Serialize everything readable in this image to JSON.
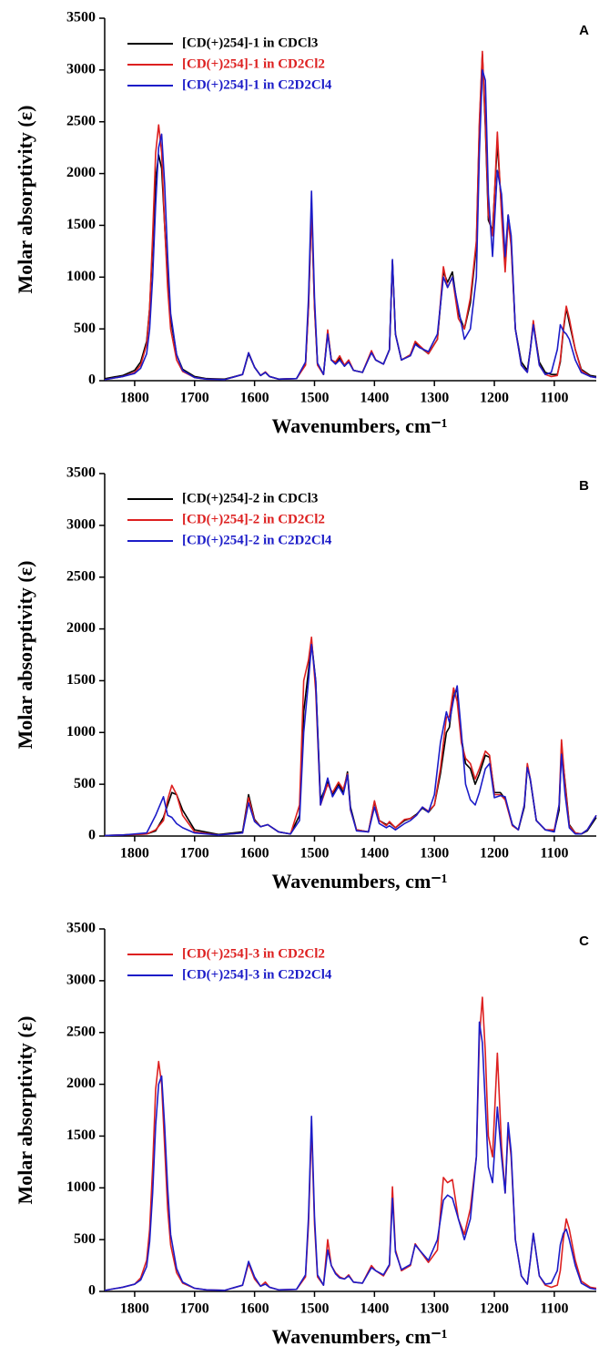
{
  "chart_data": [
    {
      "type": "line",
      "panel": "A",
      "ylabel": "Molar absorptivity (ε)",
      "xlabel": "Wavenumbers, cm⁻¹",
      "xlim": [
        1850,
        1030
      ],
      "xticks": [
        1800,
        1700,
        1600,
        1500,
        1400,
        1300,
        1200,
        1100
      ],
      "ylim": [
        0,
        3500
      ],
      "yticks": [
        0,
        500,
        1000,
        1500,
        2000,
        2500,
        3000,
        3500
      ],
      "x": [
        1850,
        1820,
        1800,
        1790,
        1780,
        1775,
        1770,
        1765,
        1760,
        1755,
        1750,
        1745,
        1740,
        1730,
        1720,
        1700,
        1680,
        1650,
        1620,
        1610,
        1600,
        1590,
        1582,
        1575,
        1560,
        1530,
        1515,
        1510,
        1505,
        1500,
        1495,
        1485,
        1478,
        1472,
        1465,
        1458,
        1450,
        1443,
        1435,
        1420,
        1405,
        1398,
        1385,
        1375,
        1370,
        1365,
        1355,
        1340,
        1332,
        1325,
        1310,
        1295,
        1285,
        1278,
        1270,
        1260,
        1250,
        1240,
        1230,
        1225,
        1220,
        1215,
        1210,
        1203,
        1195,
        1188,
        1182,
        1177,
        1172,
        1165,
        1155,
        1145,
        1140,
        1135,
        1125,
        1115,
        1105,
        1095,
        1090,
        1085,
        1080,
        1075,
        1065,
        1055,
        1040,
        1030
      ],
      "series": [
        {
          "name": "[CD(+)254]-1 in CDCl3",
          "color": "#000000",
          "values": [
            20,
            50,
            100,
            180,
            380,
            700,
            1300,
            1950,
            2180,
            2050,
            1500,
            1000,
            600,
            250,
            110,
            40,
            20,
            15,
            60,
            260,
            130,
            50,
            80,
            40,
            15,
            20,
            160,
            720,
            1680,
            720,
            160,
            60,
            470,
            200,
            170,
            220,
            140,
            190,
            100,
            80,
            280,
            200,
            160,
            300,
            1160,
            450,
            200,
            250,
            370,
            330,
            260,
            400,
            1050,
            950,
            1050,
            650,
            500,
            750,
            1300,
            2450,
            3150,
            2450,
            1550,
            1450,
            2300,
            1650,
            1100,
            1600,
            1350,
            500,
            180,
            100,
            300,
            560,
            180,
            80,
            60,
            60,
            180,
            480,
            700,
            560,
            300,
            110,
            50,
            40
          ]
        },
        {
          "name": "[CD(+)254]-1 in CD2Cl2",
          "color": "#dd2020",
          "values": [
            10,
            40,
            80,
            150,
            350,
            700,
            1400,
            2200,
            2470,
            2200,
            1500,
            900,
            500,
            200,
            90,
            30,
            15,
            10,
            60,
            270,
            130,
            50,
            85,
            40,
            15,
            20,
            150,
            700,
            1660,
            700,
            150,
            60,
            490,
            200,
            180,
            240,
            150,
            200,
            100,
            80,
            290,
            200,
            160,
            300,
            1150,
            450,
            200,
            250,
            380,
            340,
            260,
            400,
            1100,
            900,
            1000,
            600,
            500,
            800,
            1350,
            2500,
            3180,
            2500,
            1600,
            1400,
            2400,
            1600,
            1050,
            1550,
            1300,
            500,
            150,
            80,
            300,
            580,
            150,
            60,
            40,
            50,
            200,
            500,
            720,
            600,
            300,
            100,
            40,
            30
          ]
        },
        {
          "name": "[CD(+)254]-1 in C2D2Cl4",
          "color": "#1c1cc8",
          "values": [
            10,
            40,
            70,
            120,
            260,
            500,
            1000,
            1700,
            2250,
            2380,
            1900,
            1200,
            650,
            250,
            100,
            30,
            15,
            10,
            60,
            270,
            130,
            50,
            80,
            40,
            15,
            20,
            180,
            800,
            1830,
            800,
            170,
            60,
            450,
            200,
            160,
            200,
            140,
            180,
            100,
            80,
            270,
            200,
            160,
            300,
            1170,
            450,
            200,
            240,
            350,
            320,
            280,
            450,
            1000,
            900,
            1000,
            700,
            400,
            500,
            1000,
            2200,
            3000,
            2900,
            1800,
            1200,
            2030,
            1800,
            1200,
            1600,
            1400,
            500,
            150,
            80,
            300,
            540,
            150,
            60,
            80,
            300,
            540,
            480,
            450,
            400,
            200,
            80,
            40,
            30
          ]
        }
      ]
    },
    {
      "type": "line",
      "panel": "B",
      "ylabel": "Molar absorptivity (ε)",
      "xlabel": "Wavenumbers, cm⁻¹",
      "xlim": [
        1850,
        1030
      ],
      "xticks": [
        1800,
        1700,
        1600,
        1500,
        1400,
        1300,
        1200,
        1100
      ],
      "ylim": [
        0,
        3500
      ],
      "yticks": [
        0,
        500,
        1000,
        1500,
        2000,
        2500,
        3000,
        3500
      ],
      "x": [
        1850,
        1820,
        1780,
        1765,
        1752,
        1745,
        1738,
        1730,
        1720,
        1700,
        1660,
        1620,
        1610,
        1600,
        1590,
        1578,
        1560,
        1540,
        1525,
        1518,
        1510,
        1505,
        1498,
        1490,
        1478,
        1470,
        1460,
        1452,
        1445,
        1440,
        1430,
        1410,
        1400,
        1392,
        1380,
        1375,
        1365,
        1350,
        1340,
        1330,
        1320,
        1310,
        1300,
        1290,
        1280,
        1275,
        1268,
        1262,
        1255,
        1248,
        1240,
        1232,
        1225,
        1215,
        1208,
        1200,
        1190,
        1182,
        1170,
        1160,
        1150,
        1145,
        1140,
        1130,
        1115,
        1100,
        1092,
        1088,
        1082,
        1075,
        1065,
        1055,
        1045,
        1030
      ],
      "series": [
        {
          "name": "[CD(+)254]-2 in CDCl3",
          "color": "#000000",
          "values": [
            5,
            10,
            20,
            50,
            180,
            300,
            420,
            400,
            250,
            60,
            15,
            40,
            400,
            160,
            90,
            110,
            40,
            20,
            200,
            1200,
            1600,
            1880,
            1500,
            350,
            520,
            400,
            500,
            420,
            620,
            280,
            60,
            40,
            330,
            150,
            110,
            130,
            80,
            150,
            170,
            210,
            270,
            230,
            300,
            600,
            1000,
            1050,
            1400,
            1400,
            950,
            700,
            650,
            500,
            600,
            780,
            760,
            420,
            420,
            360,
            110,
            60,
            280,
            680,
            540,
            150,
            60,
            50,
            250,
            850,
            520,
            110,
            30,
            20,
            50,
            180
          ]
        },
        {
          "name": "[CD(+)254]-2 in CD2Cl2",
          "color": "#dd2020",
          "values": [
            5,
            10,
            20,
            60,
            150,
            350,
            490,
            400,
            200,
            40,
            10,
            30,
            370,
            150,
            90,
            110,
            40,
            20,
            300,
            1500,
            1700,
            1920,
            1400,
            300,
            500,
            420,
            520,
            450,
            600,
            250,
            60,
            40,
            340,
            150,
            100,
            140,
            80,
            160,
            170,
            200,
            280,
            240,
            300,
            650,
            1150,
            1150,
            1430,
            1300,
            900,
            750,
            700,
            550,
            650,
            820,
            780,
            400,
            400,
            350,
            100,
            60,
            300,
            700,
            550,
            150,
            60,
            60,
            300,
            930,
            500,
            100,
            30,
            20,
            60,
            200
          ]
        },
        {
          "name": "[CD(+)254]-2 in C2D2Cl4",
          "color": "#1c1cc8",
          "values": [
            5,
            10,
            30,
            200,
            380,
            200,
            180,
            120,
            80,
            30,
            10,
            30,
            320,
            140,
            90,
            110,
            40,
            20,
            150,
            1000,
            1500,
            1850,
            1500,
            300,
            560,
            380,
            480,
            400,
            590,
            260,
            50,
            40,
            280,
            120,
            80,
            100,
            60,
            120,
            150,
            200,
            280,
            230,
            400,
            900,
            1200,
            1100,
            1320,
            1450,
            1000,
            500,
            350,
            300,
            420,
            650,
            700,
            370,
            390,
            380,
            110,
            60,
            300,
            660,
            550,
            150,
            60,
            40,
            300,
            790,
            400,
            80,
            20,
            20,
            60,
            200
          ]
        }
      ]
    },
    {
      "type": "line",
      "panel": "C",
      "ylabel": "Molar absorptivity (ε)",
      "xlabel": "Wavenumbers, cm⁻¹",
      "xlim": [
        1850,
        1030
      ],
      "xticks": [
        1800,
        1700,
        1600,
        1500,
        1400,
        1300,
        1200,
        1100
      ],
      "ylim": [
        0,
        3500
      ],
      "yticks": [
        0,
        500,
        1000,
        1500,
        2000,
        2500,
        3000,
        3500
      ],
      "x": [
        1850,
        1820,
        1800,
        1790,
        1780,
        1775,
        1770,
        1765,
        1760,
        1755,
        1750,
        1745,
        1740,
        1730,
        1720,
        1700,
        1680,
        1650,
        1620,
        1610,
        1600,
        1590,
        1582,
        1575,
        1560,
        1530,
        1515,
        1510,
        1505,
        1500,
        1495,
        1485,
        1478,
        1472,
        1465,
        1458,
        1450,
        1443,
        1435,
        1420,
        1405,
        1398,
        1385,
        1375,
        1370,
        1365,
        1355,
        1340,
        1332,
        1325,
        1310,
        1295,
        1285,
        1278,
        1270,
        1260,
        1250,
        1240,
        1230,
        1225,
        1220,
        1215,
        1210,
        1203,
        1195,
        1188,
        1182,
        1177,
        1172,
        1165,
        1155,
        1145,
        1140,
        1135,
        1125,
        1115,
        1105,
        1095,
        1090,
        1085,
        1080,
        1075,
        1065,
        1055,
        1040,
        1030
      ],
      "series": [
        {
          "name": "[CD(+)254]-3 in CD2Cl2",
          "color": "#dd2020",
          "values": [
            10,
            40,
            70,
            130,
            300,
            600,
            1200,
            1950,
            2220,
            2000,
            1400,
            800,
            450,
            180,
            80,
            30,
            15,
            10,
            60,
            270,
            120,
            50,
            90,
            40,
            15,
            20,
            140,
            650,
            1600,
            650,
            140,
            60,
            500,
            250,
            180,
            140,
            120,
            160,
            90,
            80,
            250,
            200,
            150,
            250,
            1010,
            400,
            200,
            250,
            460,
            400,
            280,
            400,
            1100,
            1050,
            1080,
            700,
            550,
            800,
            1300,
            2450,
            2840,
            2300,
            1500,
            1300,
            2300,
            1400,
            950,
            1580,
            1300,
            500,
            150,
            70,
            300,
            560,
            150,
            60,
            40,
            60,
            200,
            500,
            700,
            600,
            300,
            100,
            40,
            30
          ]
        },
        {
          "name": "[CD(+)254]-3 in C2D2Cl4",
          "color": "#1c1cc8",
          "values": [
            10,
            40,
            70,
            110,
            240,
            480,
            950,
            1600,
            2000,
            2080,
            1600,
            1000,
            550,
            220,
            90,
            30,
            15,
            10,
            60,
            290,
            140,
            50,
            70,
            40,
            15,
            20,
            160,
            720,
            1690,
            720,
            160,
            60,
            400,
            250,
            170,
            130,
            120,
            150,
            90,
            80,
            230,
            200,
            160,
            260,
            900,
            380,
            210,
            260,
            450,
            400,
            300,
            500,
            880,
            930,
            900,
            700,
            500,
            700,
            1300,
            2600,
            2400,
            1800,
            1200,
            1050,
            1780,
            1300,
            950,
            1630,
            1350,
            500,
            150,
            70,
            300,
            560,
            150,
            70,
            80,
            200,
            450,
            560,
            600,
            500,
            250,
            80,
            30,
            20
          ]
        }
      ]
    }
  ]
}
